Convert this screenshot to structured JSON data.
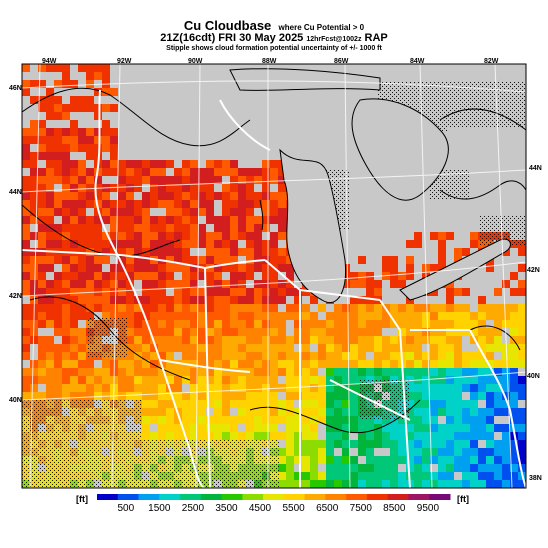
{
  "title": {
    "main": "Cu Cloudbase",
    "main_sub": "where Cu Potential > 0",
    "line2": "21Z(16cdt) FRI 30 May 2025",
    "line2_small": "12hrFcst@1002z",
    "line2_model": "RAP",
    "line3": "Stipple shows cloud formation potential uncertainty of +/- 1000 ft"
  },
  "map": {
    "top_labels": [
      "94W",
      "92W",
      "90W",
      "88W",
      "86W",
      "84W",
      "82W"
    ],
    "left_labels": [
      "46N",
      "44N",
      "42N",
      "40N"
    ],
    "right_labels": [
      "44N",
      "42N",
      "40N",
      "38N"
    ]
  },
  "colorbar": {
    "unit_left": "[ft]",
    "unit_right": "[ft]",
    "tick_labels": [
      "500",
      "1500",
      "2500",
      "3500",
      "4500",
      "5500",
      "6500",
      "7500",
      "8500",
      "9500"
    ],
    "colors": [
      "#0000c8",
      "#0050f0",
      "#00a0f0",
      "#00d2c8",
      "#00c878",
      "#00b43c",
      "#28c800",
      "#8cdc00",
      "#e6e600",
      "#ffd200",
      "#ffaa00",
      "#ff8200",
      "#ff5a00",
      "#f03200",
      "#d21e1e",
      "#a01464",
      "#780a78"
    ]
  }
}
